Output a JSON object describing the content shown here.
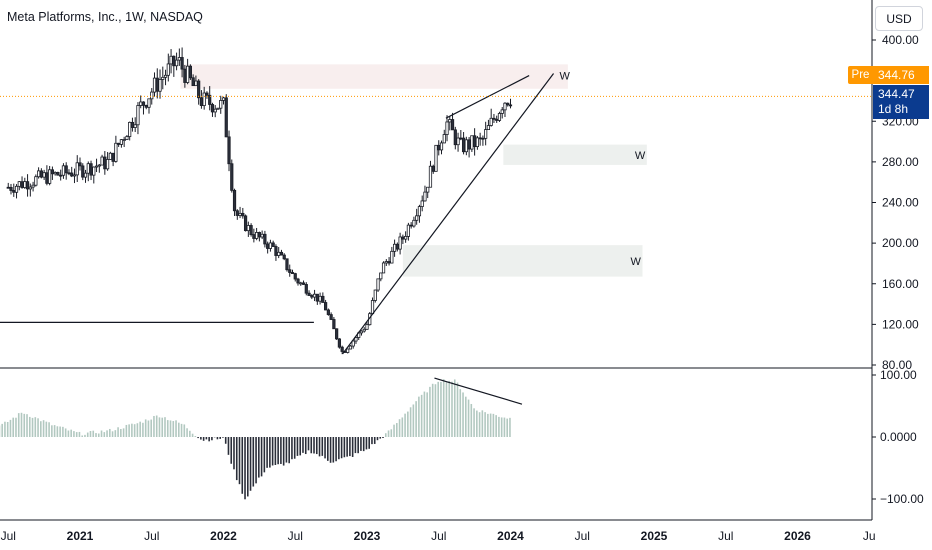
{
  "header": {
    "title": "Meta Platforms, Inc., 1W, NASDAQ",
    "currency": "USD"
  },
  "price_labels": {
    "pre_label": "Pre",
    "pre_value": "344.76",
    "last_value": "344.47",
    "countdown": "1d 8h"
  },
  "colors": {
    "up": "#26a69a",
    "down": "#131722",
    "candle_body": "#2b2f3a",
    "osc_pos": "#b2c8c0",
    "osc_neg": "#2a2e39",
    "price_line": "#ff9800",
    "zone_top": "#f8eeee",
    "zone": "#edf0ee",
    "trendline": "#131722",
    "axis_text": "#131722"
  },
  "chart_data": [
    {
      "type": "line",
      "subtype": "candlestick-price",
      "title": "Meta Platforms, Inc., 1W, NASDAQ",
      "ylim": [
        80,
        400
      ],
      "y_ticks": [
        "400.00",
        "320.00",
        "280.00",
        "240.00",
        "200.00",
        "160.00",
        "120.00",
        "80.00"
      ],
      "x_ticks": [
        "Jul",
        "2021",
        "Jul",
        "2022",
        "Jul",
        "2023",
        "Jul",
        "2024",
        "Jul",
        "2025",
        "Jul",
        "2026",
        "Ju"
      ],
      "series": [
        {
          "values": [
            {
              "t": 2020.5,
              "v": 255
            },
            {
              "t": 2020.75,
              "v": 265
            },
            {
              "t": 2021.0,
              "v": 272
            },
            {
              "t": 2021.2,
              "v": 280
            },
            {
              "t": 2021.4,
              "v": 330
            },
            {
              "t": 2021.55,
              "v": 360
            },
            {
              "t": 2021.68,
              "v": 380
            },
            {
              "t": 2021.85,
              "v": 340
            },
            {
              "t": 2022.0,
              "v": 335
            },
            {
              "t": 2022.08,
              "v": 230
            },
            {
              "t": 2022.2,
              "v": 210
            },
            {
              "t": 2022.35,
              "v": 195
            },
            {
              "t": 2022.5,
              "v": 165
            },
            {
              "t": 2022.7,
              "v": 140
            },
            {
              "t": 2022.83,
              "v": 92
            },
            {
              "t": 2023.0,
              "v": 120
            },
            {
              "t": 2023.1,
              "v": 175
            },
            {
              "t": 2023.25,
              "v": 205
            },
            {
              "t": 2023.4,
              "v": 250
            },
            {
              "t": 2023.55,
              "v": 320
            },
            {
              "t": 2023.65,
              "v": 295
            },
            {
              "t": 2023.8,
              "v": 300
            },
            {
              "t": 2023.95,
              "v": 340
            },
            {
              "t": 2024.0,
              "v": 344.47
            }
          ]
        }
      ],
      "last_price": 344.47,
      "pre_market_price": 344.76,
      "zones": [
        {
          "label": "",
          "x_range": [
            2021.7,
            2024.4
          ],
          "y_range": [
            352,
            376
          ]
        },
        {
          "label": "W",
          "x_range": [
            2023.95,
            2024.95
          ],
          "y_range": [
            277,
            297
          ]
        },
        {
          "label": "W",
          "x_range": [
            2023.25,
            2024.92
          ],
          "y_range": [
            167,
            198
          ]
        }
      ],
      "annotations": [
        {
          "label": "W",
          "kind": "trendline",
          "from": {
            "t": 2022.83,
            "v": 91
          },
          "to": {
            "t": 2024.3,
            "v": 367
          }
        },
        {
          "label": "",
          "kind": "trendline",
          "from": {
            "t": 2023.55,
            "v": 323
          },
          "to": {
            "t": 2024.13,
            "v": 365
          }
        },
        {
          "label": "",
          "kind": "horizontal",
          "from": {
            "t": 2020.4,
            "v": 122
          },
          "to": {
            "t": 2022.63,
            "v": 122
          }
        }
      ]
    },
    {
      "type": "bar",
      "subtype": "oscillator",
      "ylim": [
        -120,
        120
      ],
      "y_ticks": [
        "100.00",
        "0.0000",
        "−100.00"
      ],
      "series": [
        {
          "values": [
            {
              "t": 2020.45,
              "v": 18
            },
            {
              "t": 2020.6,
              "v": 40
            },
            {
              "t": 2020.8,
              "v": 20
            },
            {
              "t": 2021.0,
              "v": 5
            },
            {
              "t": 2021.2,
              "v": 10
            },
            {
              "t": 2021.4,
              "v": 22
            },
            {
              "t": 2021.55,
              "v": 35
            },
            {
              "t": 2021.72,
              "v": 20
            },
            {
              "t": 2021.85,
              "v": -5
            },
            {
              "t": 2022.0,
              "v": -2
            },
            {
              "t": 2022.08,
              "v": -60
            },
            {
              "t": 2022.15,
              "v": -100
            },
            {
              "t": 2022.3,
              "v": -50
            },
            {
              "t": 2022.45,
              "v": -42
            },
            {
              "t": 2022.6,
              "v": -22
            },
            {
              "t": 2022.75,
              "v": -40
            },
            {
              "t": 2022.88,
              "v": -32
            },
            {
              "t": 2023.0,
              "v": -20
            },
            {
              "t": 2023.15,
              "v": 8
            },
            {
              "t": 2023.35,
              "v": 60
            },
            {
              "t": 2023.5,
              "v": 92
            },
            {
              "t": 2023.62,
              "v": 90
            },
            {
              "t": 2023.75,
              "v": 45
            },
            {
              "t": 2023.9,
              "v": 35
            },
            {
              "t": 2024.0,
              "v": 30
            }
          ]
        }
      ],
      "annotations": [
        {
          "label": "",
          "kind": "trendline",
          "from": {
            "t": 2023.47,
            "v": 95
          },
          "to": {
            "t": 2024.08,
            "v": 53
          }
        }
      ]
    }
  ]
}
